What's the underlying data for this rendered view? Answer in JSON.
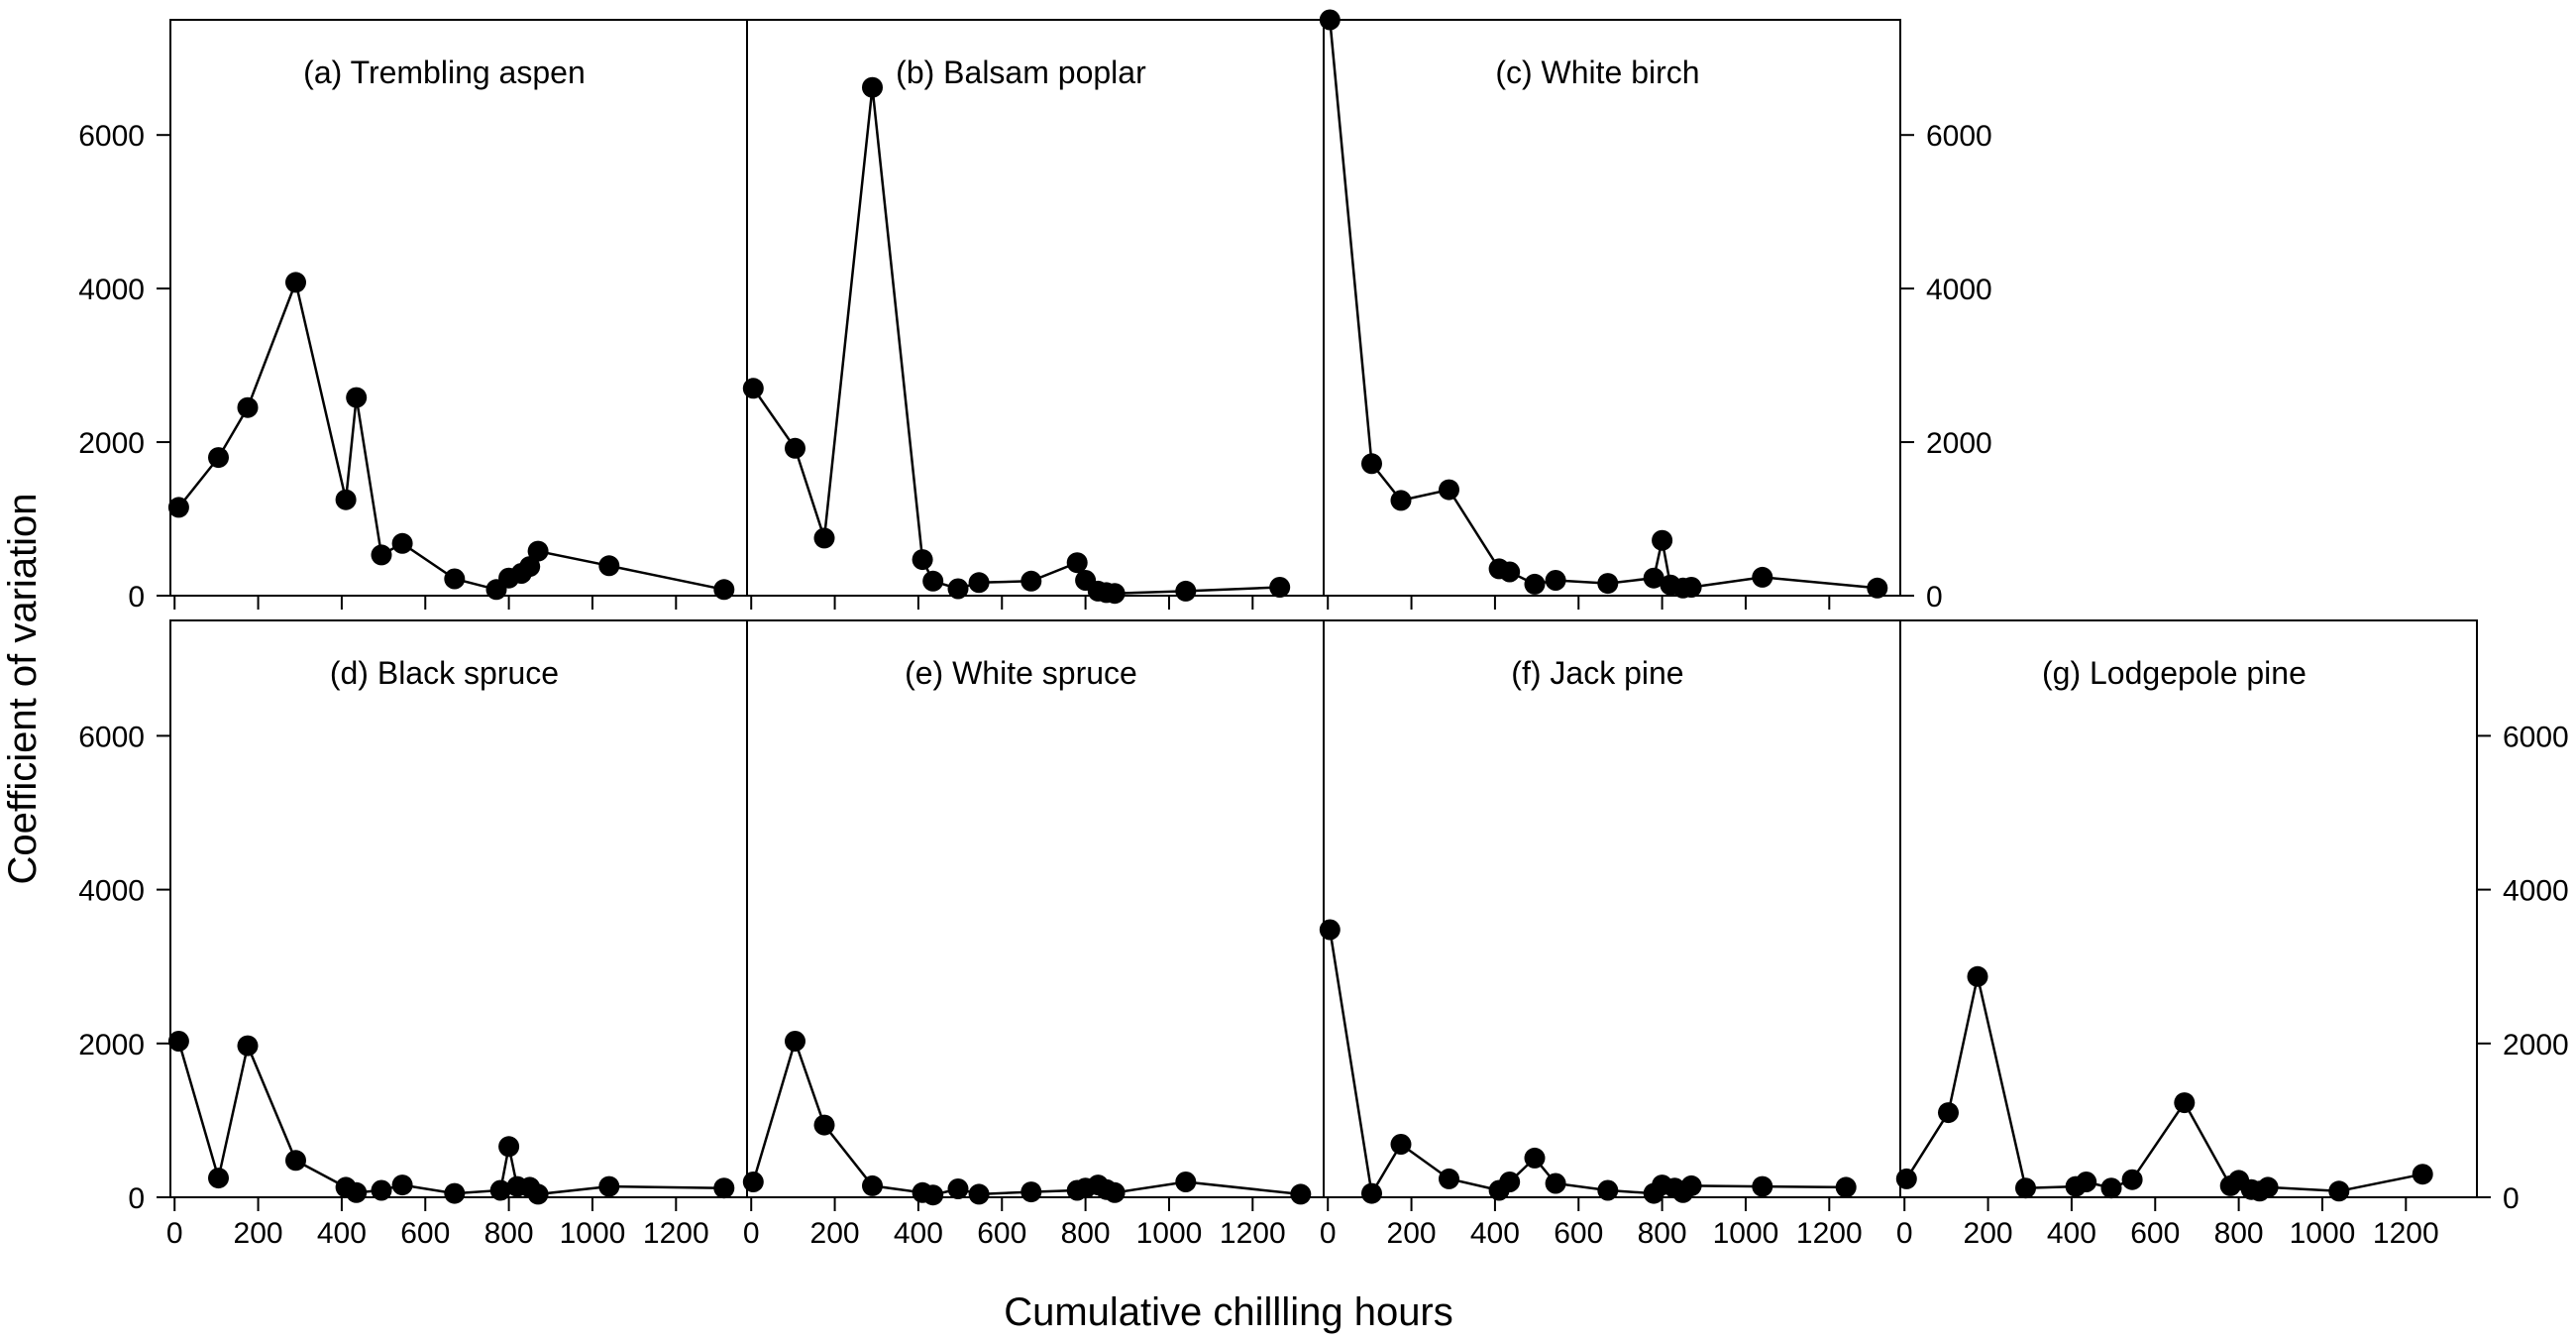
{
  "chart_data": {
    "type": "line",
    "xlabel": "Cumulative chillling hours",
    "ylabel": "Coefficient of variation",
    "xlim": [
      -10,
      1370
    ],
    "ylim": [
      0,
      7500
    ],
    "x_ticks": [
      0,
      200,
      400,
      600,
      800,
      1000,
      1200
    ],
    "y_ticks": [
      0,
      2000,
      4000,
      6000
    ],
    "marker": "filled-circle",
    "line_color": "#000000",
    "marker_color": "#000000",
    "panels": [
      {
        "title": "(a) Trembling aspen",
        "row": 0,
        "col": 0,
        "x": [
          10,
          105,
          175,
          290,
          410,
          435,
          495,
          545,
          670,
          770,
          800,
          830,
          850,
          870,
          1040,
          1315
        ],
        "y": [
          1150,
          1800,
          2450,
          4080,
          1250,
          2580,
          530,
          680,
          220,
          80,
          230,
          290,
          380,
          580,
          390,
          80
        ]
      },
      {
        "title": "(b) Balsam poplar",
        "row": 0,
        "col": 1,
        "x": [
          5,
          105,
          175,
          290,
          410,
          435,
          495,
          545,
          670,
          780,
          800,
          830,
          850,
          870,
          1040,
          1265
        ],
        "y": [
          2700,
          1920,
          750,
          6620,
          470,
          190,
          90,
          170,
          190,
          430,
          200,
          60,
          40,
          30,
          60,
          110
        ]
      },
      {
        "title": "(c) White birch",
        "row": 0,
        "col": 2,
        "x": [
          5,
          105,
          175,
          290,
          410,
          435,
          495,
          545,
          670,
          780,
          800,
          820,
          850,
          870,
          1040,
          1315
        ],
        "y": [
          7500,
          1720,
          1240,
          1380,
          350,
          310,
          150,
          200,
          160,
          230,
          720,
          140,
          100,
          110,
          240,
          100
        ]
      },
      {
        "title": "(d) Black spruce",
        "row": 1,
        "col": 0,
        "x": [
          10,
          105,
          175,
          290,
          410,
          435,
          495,
          545,
          670,
          780,
          800,
          820,
          850,
          870,
          1040,
          1315
        ],
        "y": [
          2030,
          250,
          1970,
          480,
          130,
          60,
          90,
          160,
          50,
          90,
          660,
          140,
          130,
          40,
          140,
          120
        ]
      },
      {
        "title": "(e) White spruce",
        "row": 1,
        "col": 1,
        "x": [
          5,
          105,
          175,
          290,
          410,
          435,
          495,
          545,
          670,
          780,
          800,
          830,
          850,
          870,
          1040,
          1315
        ],
        "y": [
          200,
          2030,
          940,
          150,
          60,
          30,
          110,
          40,
          70,
          90,
          120,
          160,
          100,
          60,
          200,
          40
        ]
      },
      {
        "title": "(f) Jack pine",
        "row": 1,
        "col": 2,
        "x": [
          5,
          105,
          175,
          290,
          410,
          435,
          495,
          545,
          670,
          780,
          800,
          830,
          850,
          870,
          1040,
          1240
        ],
        "y": [
          3480,
          50,
          690,
          240,
          90,
          200,
          510,
          180,
          90,
          50,
          160,
          120,
          60,
          150,
          140,
          130
        ]
      },
      {
        "title": "(g) Lodgepole pine",
        "row": 1,
        "col": 3,
        "x": [
          5,
          105,
          175,
          290,
          410,
          435,
          495,
          545,
          670,
          780,
          800,
          830,
          850,
          870,
          1040,
          1240
        ],
        "y": [
          240,
          1100,
          2870,
          120,
          140,
          200,
          120,
          230,
          1230,
          150,
          220,
          100,
          80,
          130,
          80,
          300
        ]
      }
    ]
  }
}
